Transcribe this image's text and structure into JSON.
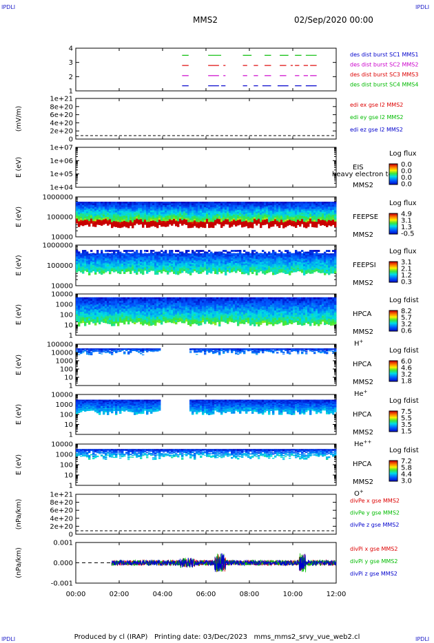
{
  "corner_label": "IPDLI",
  "header": {
    "mission": "MMS2",
    "datetime": "02/Sep/2020 00:00"
  },
  "footer": {
    "produced_by": "Produced by cl (IRAP)",
    "printing_date": "Printing date: 03/Dec/2023",
    "filename": "mms_mms2_srvy_vue_web2.cl"
  },
  "chart_data": [
    {
      "type": "line",
      "id": "burst",
      "ylabel": "",
      "yticks": [
        "4",
        "3",
        "2",
        "1"
      ],
      "legend": [
        {
          "name": "des dist burst SC1 MMS1",
          "color": "#0000cc"
        },
        {
          "name": "des dist burst SC2 MMS2",
          "color": "#cc00cc"
        },
        {
          "name": "des dist burst SC3 MMS3",
          "color": "#dd0000"
        },
        {
          "name": "des dist burst SC4 MMS4",
          "color": "#00bb00"
        }
      ],
      "series": [
        {
          "name": "SC4",
          "level": 4,
          "color": "#00bb00",
          "intervals": [
            [
              4.9,
              5.2
            ],
            [
              6.1,
              6.7
            ],
            [
              7.7,
              8.1
            ],
            [
              8.7,
              9.0
            ],
            [
              9.4,
              9.8
            ],
            [
              10.1,
              10.4
            ],
            [
              10.6,
              11.1
            ]
          ]
        },
        {
          "name": "SC3",
          "level": 3,
          "color": "#dd0000",
          "intervals": [
            [
              4.9,
              5.2
            ],
            [
              6.1,
              6.6
            ],
            [
              6.8,
              6.9
            ],
            [
              7.7,
              7.9
            ],
            [
              8.2,
              8.4
            ],
            [
              8.7,
              9.0
            ],
            [
              9.4,
              9.7
            ],
            [
              9.9,
              10.0
            ],
            [
              10.1,
              10.3
            ],
            [
              10.5,
              10.7
            ],
            [
              10.8,
              11.1
            ]
          ]
        },
        {
          "name": "SC2",
          "level": 2,
          "color": "#cc00cc",
          "intervals": [
            [
              4.9,
              5.2
            ],
            [
              6.1,
              6.6
            ],
            [
              6.8,
              6.9
            ],
            [
              7.7,
              7.9
            ],
            [
              8.2,
              8.4
            ],
            [
              8.7,
              9.0
            ],
            [
              9.4,
              9.7
            ],
            [
              10.1,
              10.3
            ],
            [
              10.5,
              10.7
            ],
            [
              10.8,
              11.1
            ]
          ]
        },
        {
          "name": "SC1",
          "level": 1,
          "color": "#0000cc",
          "intervals": [
            [
              4.9,
              5.2
            ],
            [
              6.1,
              6.6
            ],
            [
              6.7,
              6.9
            ],
            [
              7.7,
              7.9
            ],
            [
              8.2,
              8.4
            ],
            [
              8.6,
              9.0
            ],
            [
              9.3,
              9.8
            ],
            [
              10.1,
              10.4
            ],
            [
              10.6,
              11.1
            ]
          ]
        }
      ]
    },
    {
      "type": "line",
      "id": "edi",
      "ylabel": "(mV/m)",
      "yticks": [
        "1e+21",
        "8e+20",
        "6e+20",
        "4e+20",
        "2e+20",
        "0"
      ],
      "legend": [
        {
          "name": "edi ex gse l2 MMS2",
          "color": "#dd0000"
        },
        {
          "name": "edi ey gse l2 MMS2",
          "color": "#00bb00"
        },
        {
          "name": "edi ez gse l2 MMS2",
          "color": "#0000cc"
        }
      ]
    },
    {
      "type": "heatmap",
      "id": "eis",
      "ylabel": "E (eV)",
      "yticks": [
        "1e+07",
        "1e+06",
        "1e+05",
        "1e+04"
      ],
      "labels": [
        "EIS",
        "MMS2"
      ],
      "overlay_text": "heavy electron to",
      "colorbar": {
        "title": "Log flux",
        "ticks": [
          "0.0",
          "0.0",
          "0.0",
          "0.0"
        ]
      }
    },
    {
      "type": "heatmap",
      "id": "feepse",
      "ylabel": "E (eV)",
      "yticks": [
        "1000000",
        "100000",
        "10000"
      ],
      "labels": [
        "FEEPSE",
        "MMS2"
      ],
      "colorbar": {
        "title": "Log flux",
        "ticks": [
          "4.9",
          "3.1",
          "1.3",
          "-0.5"
        ]
      }
    },
    {
      "type": "heatmap",
      "id": "feepsi",
      "ylabel": "E (eV)",
      "yticks": [
        "1000000",
        "100000",
        "10000"
      ],
      "labels": [
        "FEEPSI",
        "MMS2"
      ],
      "colorbar": {
        "title": "Log flux",
        "ticks": [
          "3.1",
          "2.1",
          "1.2",
          "0.3"
        ]
      }
    },
    {
      "type": "heatmap",
      "id": "hpca_h",
      "ylabel": "E (eV)",
      "yticks": [
        "10000",
        "1000",
        "100",
        "10",
        "1"
      ],
      "labels": [
        "HPCA",
        "MMS2",
        "H+"
      ],
      "colorbar": {
        "title": "Log fdist",
        "ticks": [
          "8.2",
          "5.7",
          "3.2",
          "0.6"
        ]
      }
    },
    {
      "type": "heatmap",
      "id": "hpca_he",
      "ylabel": "E (eV)",
      "yticks": [
        "100000",
        "10000",
        "1000",
        "100",
        "10",
        "1"
      ],
      "labels": [
        "HPCA",
        "MMS2",
        "He+"
      ],
      "colorbar": {
        "title": "Log fdist",
        "ticks": [
          "6.0",
          "4.6",
          "3.2",
          "1.8"
        ]
      }
    },
    {
      "type": "heatmap",
      "id": "hpca_hepp",
      "ylabel": "E (eV)",
      "yticks": [
        "10000",
        "1000",
        "100",
        "10",
        "1"
      ],
      "labels": [
        "HPCA",
        "MMS2",
        "He++"
      ],
      "colorbar": {
        "title": "Log fdist",
        "ticks": [
          "7.5",
          "5.5",
          "3.5",
          "1.5"
        ]
      }
    },
    {
      "type": "heatmap",
      "id": "hpca_o",
      "ylabel": "E (eV)",
      "yticks": [
        "10000",
        "1000",
        "100",
        "10",
        "1"
      ],
      "labels": [
        "HPCA",
        "MMS2",
        "O+"
      ],
      "colorbar": {
        "title": "Log fdist",
        "ticks": [
          "7.2",
          "5.8",
          "4.4",
          "3.0"
        ]
      }
    },
    {
      "type": "line",
      "id": "divpe",
      "ylabel": "(nPa/km)",
      "yticks": [
        "1e+21",
        "8e+20",
        "6e+20",
        "4e+20",
        "2e+20",
        "0"
      ],
      "legend": [
        {
          "name": "divPe x gse MMS2",
          "color": "#dd0000"
        },
        {
          "name": "divPe y gse MMS2",
          "color": "#00bb00"
        },
        {
          "name": "divPe z gse MMS2",
          "color": "#0000cc"
        }
      ]
    },
    {
      "type": "line",
      "id": "divpi",
      "ylabel": "(nPa/km)",
      "yticks": [
        "0.001",
        "0.000",
        "-0.001"
      ],
      "ylim": [
        -0.0015,
        0.0015
      ],
      "legend": [
        {
          "name": "divPi x gse MMS2",
          "color": "#dd0000"
        },
        {
          "name": "divPi y gse MMS2",
          "color": "#00bb00"
        },
        {
          "name": "divPi z gse MMS2",
          "color": "#0000cc"
        }
      ]
    }
  ],
  "time_axis": {
    "ticks": [
      "00:00",
      "02:00",
      "04:00",
      "06:00",
      "08:00",
      "10:00",
      "12:00"
    ],
    "xlim": [
      0,
      12
    ]
  }
}
